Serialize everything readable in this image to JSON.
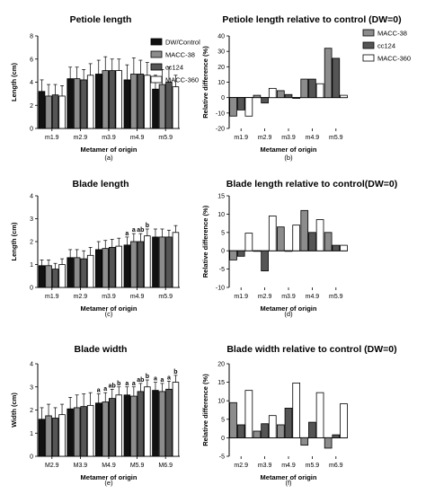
{
  "figure": {
    "legend_left": [
      "DW/Control",
      "MACC-38",
      "cc124",
      "MACC-360"
    ],
    "legend_right": [
      "MACC-38",
      "cc124",
      "MACC-360"
    ],
    "colors": {
      "DW/Control": "#111111",
      "MACC-38": "#8c8c8c",
      "cc124": "#555555",
      "MACC-360": "#ffffff"
    }
  },
  "chart_data": [
    {
      "type": "bar",
      "title": "Petiole length",
      "xlabel": "Metamer of origin",
      "ylabel": "Length (cm)",
      "caption": "(a)",
      "ylim": [
        0,
        8
      ],
      "yticks": [
        0,
        2,
        4,
        6,
        8
      ],
      "categories": [
        "m1.9",
        "m2.9",
        "m3.9",
        "m4.9",
        "m5.9"
      ],
      "series": [
        {
          "name": "DW/Control",
          "values": [
            3.2,
            4.3,
            4.7,
            4.2,
            3.4
          ],
          "errors": [
            1.0,
            1.0,
            1.2,
            1.3,
            1.2
          ]
        },
        {
          "name": "MACC-38",
          "values": [
            2.8,
            4.3,
            5.0,
            4.7,
            3.8
          ],
          "errors": [
            1.0,
            1.0,
            1.2,
            1.4,
            1.3
          ]
        },
        {
          "name": "cc124",
          "values": [
            2.9,
            4.2,
            5.0,
            4.7,
            4.0
          ],
          "errors": [
            0.9,
            0.9,
            1.0,
            1.2,
            1.3
          ]
        },
        {
          "name": "MACC-360",
          "values": [
            2.8,
            4.6,
            5.0,
            4.6,
            3.6
          ],
          "errors": [
            0.9,
            1.0,
            1.0,
            1.1,
            1.0
          ]
        }
      ]
    },
    {
      "type": "bar",
      "title": "Petiole length relative to control (DW=0)",
      "xlabel": "Metamer of origin",
      "ylabel": "Relative difference (%)",
      "caption": "(b)",
      "ylim": [
        -20,
        40
      ],
      "yticks": [
        -20,
        -10,
        0,
        10,
        20,
        30,
        40
      ],
      "categories": [
        "m1.9",
        "m2.9",
        "m3.9",
        "m4.9",
        "m5.9"
      ],
      "series": [
        {
          "name": "MACC-38",
          "values": [
            -12,
            1.5,
            4.5,
            12,
            32
          ]
        },
        {
          "name": "cc124",
          "values": [
            -8,
            -3.5,
            2,
            12,
            25.5
          ]
        },
        {
          "name": "MACC-360",
          "values": [
            -12,
            6,
            -0.5,
            9,
            1.5
          ]
        }
      ]
    },
    {
      "type": "bar",
      "title": "Blade length",
      "xlabel": "Metamer of origin",
      "ylabel": "Length (cm)",
      "caption": "(c)",
      "ylim": [
        0,
        4
      ],
      "yticks": [
        0,
        1,
        2,
        3,
        4
      ],
      "categories": [
        "m1.9",
        "m2.9",
        "m3.9",
        "m4.9",
        "m5.9"
      ],
      "series": [
        {
          "name": "DW/Control",
          "values": [
            0.95,
            1.3,
            1.65,
            1.85,
            2.2
          ],
          "errors": [
            0.25,
            0.35,
            0.35,
            0.35,
            0.35
          ]
        },
        {
          "name": "MACC-38",
          "values": [
            0.95,
            1.3,
            1.7,
            2.0,
            2.2
          ],
          "errors": [
            0.25,
            0.35,
            0.35,
            0.35,
            0.35
          ]
        },
        {
          "name": "cc124",
          "values": [
            0.8,
            1.25,
            1.75,
            2.0,
            2.2
          ],
          "errors": [
            0.25,
            0.35,
            0.35,
            0.35,
            0.3
          ]
        },
        {
          "name": "MACC-360",
          "values": [
            1.0,
            1.4,
            1.8,
            2.25,
            2.4
          ],
          "errors": [
            0.25,
            0.35,
            0.35,
            0.3,
            0.3
          ]
        }
      ],
      "annotations": [
        {
          "category": "m4.9",
          "series": "DW/Control",
          "text": "a"
        },
        {
          "category": "m4.9",
          "series": "MACC-38",
          "text": "a"
        },
        {
          "category": "m4.9",
          "series": "cc124",
          "text": "ab"
        },
        {
          "category": "m4.9",
          "series": "MACC-360",
          "text": "b"
        }
      ]
    },
    {
      "type": "bar",
      "title": "Blade length relative to control(DW=0)",
      "xlabel": "Metamer of origin",
      "ylabel": "Relative difference (%)",
      "caption": "(d)",
      "ylim": [
        -10,
        15
      ],
      "yticks": [
        -10,
        -5,
        0,
        5,
        10,
        15
      ],
      "categories": [
        "m1.9",
        "m2.9",
        "m3.9",
        "m4.9",
        "m5.9"
      ],
      "series": [
        {
          "name": "MACC-38",
          "values": [
            -2.5,
            0,
            6.5,
            11,
            5
          ]
        },
        {
          "name": "cc124",
          "values": [
            -1.5,
            -5.5,
            0,
            5,
            1.5
          ]
        },
        {
          "name": "MACC-360",
          "values": [
            4.8,
            9.5,
            7,
            8.5,
            1.5
          ]
        }
      ]
    },
    {
      "type": "bar",
      "title": "Blade width",
      "xlabel": "Metamer of origin",
      "ylabel": "Width (cm)",
      "caption": "(e)",
      "ylim": [
        0,
        4
      ],
      "yticks": [
        0,
        1,
        2,
        3,
        4
      ],
      "categories": [
        "M2.9",
        "M3.9",
        "M4.9",
        "M5.9",
        "M6.9"
      ],
      "series": [
        {
          "name": "DW/Control",
          "values": [
            1.6,
            2.05,
            2.3,
            2.65,
            2.85
          ],
          "errors": [
            0.5,
            0.5,
            0.4,
            0.35,
            0.35
          ]
        },
        {
          "name": "MACC-38",
          "values": [
            1.75,
            2.1,
            2.35,
            2.6,
            2.8
          ],
          "errors": [
            0.5,
            0.55,
            0.4,
            0.4,
            0.35
          ]
        },
        {
          "name": "cc124",
          "values": [
            1.65,
            2.15,
            2.5,
            2.8,
            2.9
          ],
          "errors": [
            0.45,
            0.55,
            0.4,
            0.35,
            0.35
          ]
        },
        {
          "name": "MACC-360",
          "values": [
            1.8,
            2.2,
            2.65,
            3.0,
            3.2
          ],
          "errors": [
            0.45,
            0.55,
            0.35,
            0.3,
            0.3
          ]
        }
      ],
      "annotations": [
        {
          "category": "M4.9",
          "series": "DW/Control",
          "text": "a"
        },
        {
          "category": "M4.9",
          "series": "MACC-38",
          "text": "a"
        },
        {
          "category": "M4.9",
          "series": "cc124",
          "text": "ab"
        },
        {
          "category": "M4.9",
          "series": "MACC-360",
          "text": "b"
        },
        {
          "category": "M5.9",
          "series": "DW/Control",
          "text": "a"
        },
        {
          "category": "M5.9",
          "series": "MACC-38",
          "text": "a"
        },
        {
          "category": "M5.9",
          "series": "cc124",
          "text": "ab"
        },
        {
          "category": "M5.9",
          "series": "MACC-360",
          "text": "b"
        },
        {
          "category": "M6.9",
          "series": "DW/Control",
          "text": "a"
        },
        {
          "category": "M6.9",
          "series": "MACC-38",
          "text": "a"
        },
        {
          "category": "M6.9",
          "series": "cc124",
          "text": "a"
        },
        {
          "category": "M6.9",
          "series": "MACC-360",
          "text": "b"
        }
      ]
    },
    {
      "type": "bar",
      "title": "Blade width relative to control (DW=0)",
      "xlabel": "Metamer of origin",
      "ylabel": "Relative difference (%)",
      "caption": "(f)",
      "ylim": [
        -5,
        20
      ],
      "yticks": [
        -5,
        0,
        5,
        10,
        15,
        20
      ],
      "categories": [
        "m2.9",
        "m3.9",
        "m4.9",
        "m5.9",
        "m6.9"
      ],
      "series": [
        {
          "name": "MACC-38",
          "values": [
            9.5,
            1.8,
            3.5,
            -2,
            -2.8
          ]
        },
        {
          "name": "cc124",
          "values": [
            3.5,
            3.8,
            8,
            4.2,
            0.8
          ]
        },
        {
          "name": "MACC-360",
          "values": [
            12.8,
            6,
            14.8,
            12.2,
            9.2
          ]
        }
      ]
    }
  ]
}
